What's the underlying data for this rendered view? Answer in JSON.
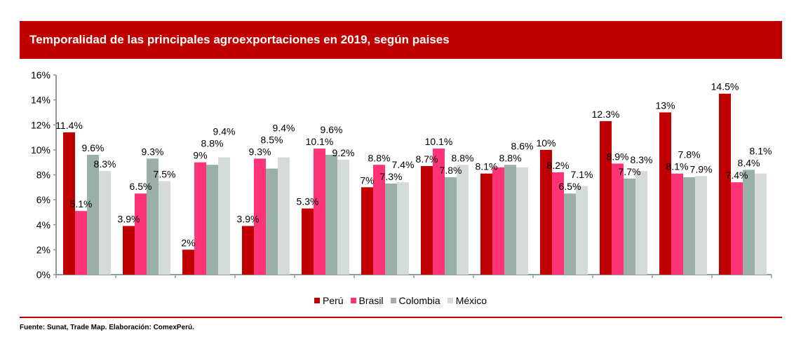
{
  "chart_data": {
    "type": "bar",
    "title": "Temporalidad de las principales agroexportaciones en 2019, según paises",
    "xlabel": "",
    "ylabel": "",
    "ylim": [
      0,
      16
    ],
    "yticks": [
      "0%",
      "2%",
      "4%",
      "6%",
      "8%",
      "10%",
      "12%",
      "14%",
      "16%"
    ],
    "grid": false,
    "legend_position": "bottom",
    "categories": [
      "",
      "",
      "",
      "",
      "",
      "",
      "",
      "",
      "",
      "",
      "",
      ""
    ],
    "series": [
      {
        "name": "Perú",
        "color": "#c00000",
        "values": [
          11.4,
          3.9,
          2,
          3.9,
          5.3,
          7,
          8.7,
          8.1,
          10,
          12.3,
          13,
          14.5
        ],
        "labels": [
          "11.4%",
          "3.9%",
          "2%",
          "3.9%",
          "5.3%",
          "7%",
          "8.7%",
          "8.1%",
          "10%",
          "12.3%",
          "13%",
          "14.5%"
        ]
      },
      {
        "name": "Brasil",
        "color": "#ff3377",
        "values": [
          5.1,
          6.5,
          9,
          9.3,
          10.1,
          8.8,
          10.1,
          8.6,
          8.2,
          8.9,
          8.1,
          7.4
        ],
        "labels": [
          "5.1%",
          "6.5%",
          "9%",
          "9.3%",
          "10.1%",
          "8.8%",
          "10.1%",
          null,
          "8.2%",
          "8.9%",
          "8.1%",
          "7.4%"
        ]
      },
      {
        "name": "Colombia",
        "color": "#9aaeaa",
        "values": [
          9.6,
          9.3,
          8.8,
          8.5,
          9.6,
          7.3,
          7.8,
          8.8,
          6.5,
          7.7,
          7.8,
          8.4
        ],
        "labels": [
          "9.6%",
          "9.3%",
          "8.8%",
          "8.5%",
          "9.6%",
          "7.3%",
          "7.8%",
          "8.8%",
          "6.5%",
          "7.7%",
          "7.8%",
          "8.4%"
        ]
      },
      {
        "name": "México",
        "color": "#d4dbd9",
        "values": [
          8.3,
          7.5,
          9.4,
          9.4,
          9.2,
          7.4,
          8.8,
          8.6,
          7.1,
          8.3,
          7.9,
          8.1
        ],
        "labels": [
          "8.3%",
          "7.5%",
          "9.4%",
          "9.4%",
          "9.2%",
          "7.4%",
          "8.8%",
          "8.6%",
          "7.1%",
          "8.3%",
          "7.9%",
          "8.1%"
        ]
      }
    ]
  },
  "header": {
    "color": "#c00000"
  },
  "source": "Fuente: Sunat, Trade  Map. Elaboración:  ComexPerú."
}
